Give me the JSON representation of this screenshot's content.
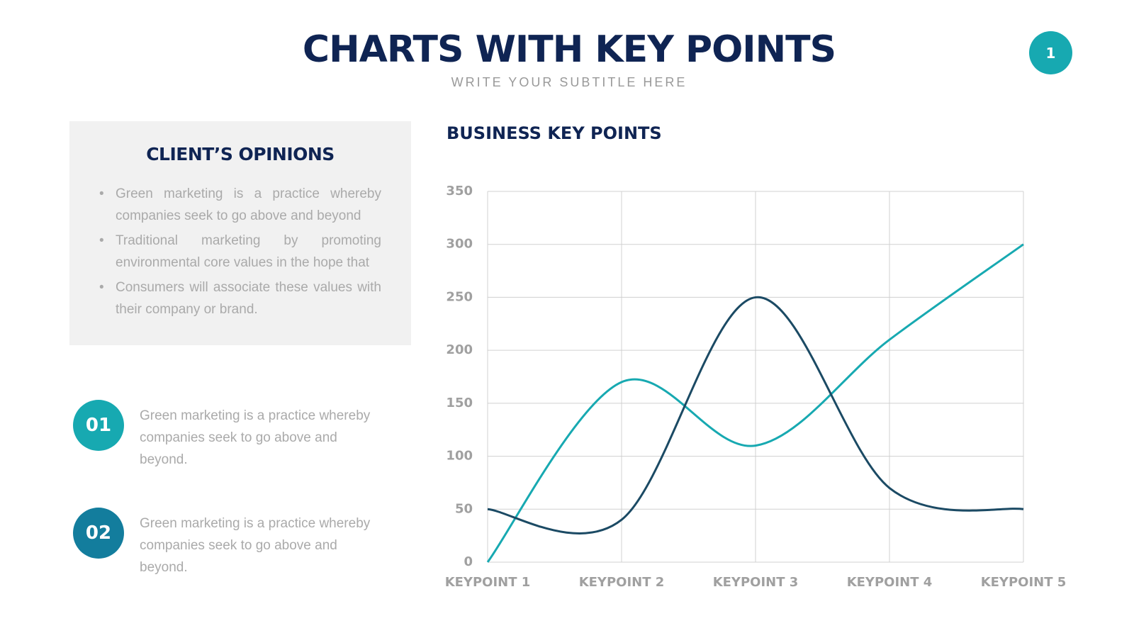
{
  "header": {
    "title": "CHARTS WITH KEY POINTS",
    "subtitle": "WRITE YOUR SUBTITLE HERE",
    "page_number": "1"
  },
  "opinions": {
    "title": "CLIENT’S OPINIONS",
    "bullets": [
      "Green marketing is a practice whereby companies seek to go above and beyond",
      "Traditional marketing by promoting environmental core values in the hope that",
      "Consumers will associate these values with their company or brand."
    ]
  },
  "items": [
    {
      "number": "01",
      "text": "Green marketing is a practice whereby companies seek to go above and beyond."
    },
    {
      "number": "02",
      "text": "Green marketing is a practice whereby companies seek to go above and beyond."
    }
  ],
  "chart_data": {
    "type": "line",
    "title": "BUSINESS KEY POINTS",
    "categories": [
      "KEYPOINT 1",
      "KEYPOINT 2",
      "KEYPOINT 3",
      "KEYPOINT 4",
      "KEYPOINT 5"
    ],
    "series": [
      {
        "color": "#17a9b1",
        "values": [
          0,
          170,
          110,
          210,
          300
        ]
      },
      {
        "color": "#1b4a64",
        "values": [
          50,
          40,
          250,
          70,
          50
        ]
      }
    ],
    "ylim": [
      0,
      350
    ],
    "yticks": [
      0,
      50,
      100,
      150,
      200,
      250,
      300,
      350
    ],
    "grid": true
  }
}
